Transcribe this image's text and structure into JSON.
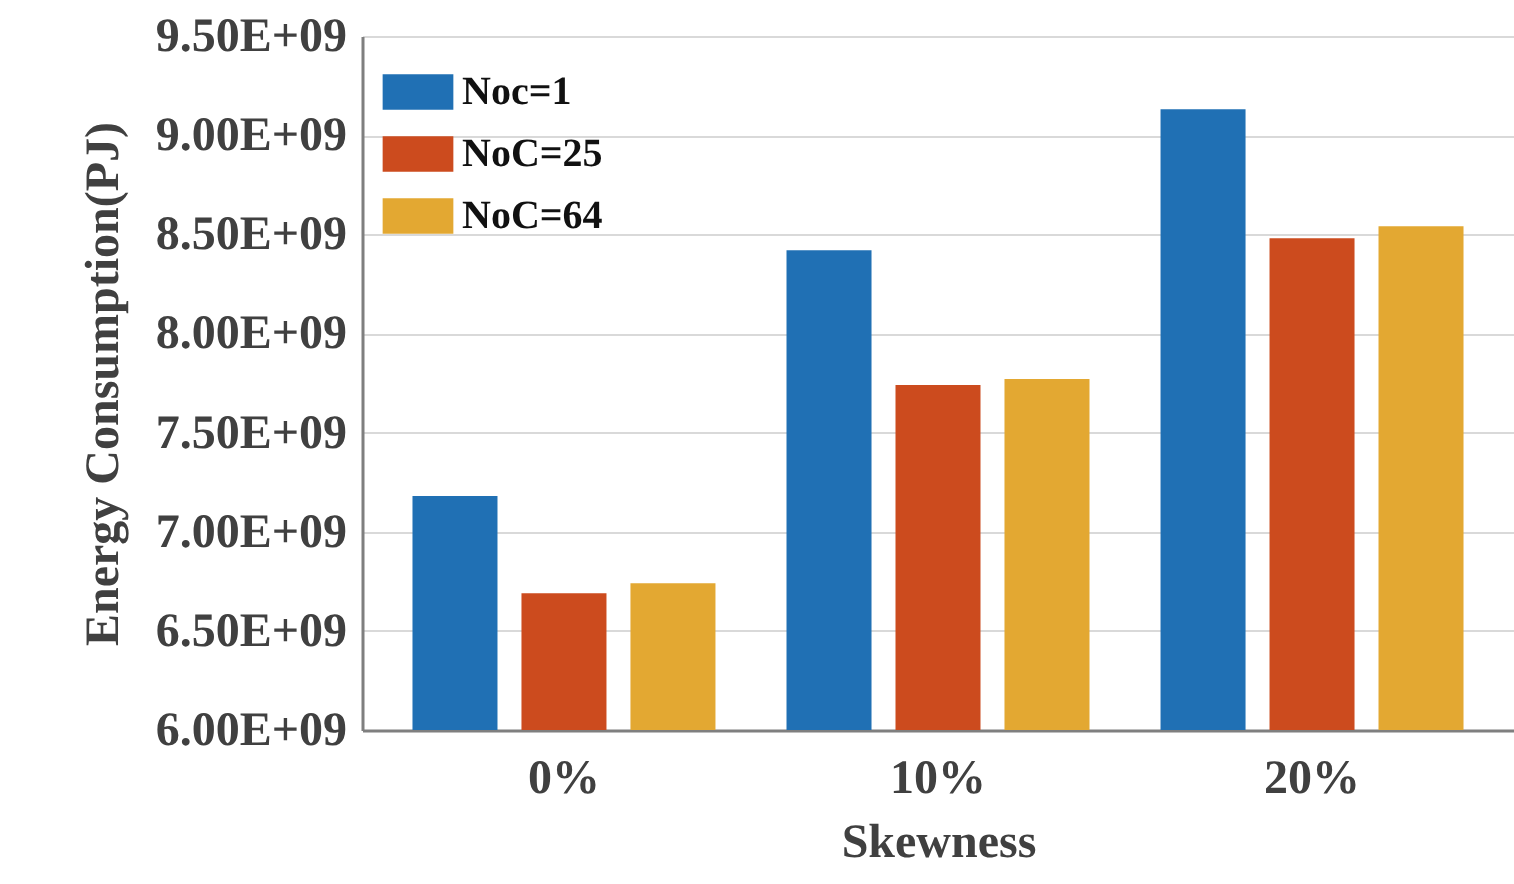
{
  "chart_data": {
    "type": "bar",
    "xlabel": "Skewness",
    "ylabel": "Energy Consumption(PJ)",
    "categories": [
      "0%",
      "10%",
      "20%"
    ],
    "series": [
      {
        "name": "Noc=1",
        "color": "#2070b4",
        "values": [
          7180000000,
          8420000000,
          9130000000
        ]
      },
      {
        "name": "NoC=25",
        "color": "#cc4b1e",
        "values": [
          6690000000,
          7740000000,
          8480000000
        ]
      },
      {
        "name": "NoC=64",
        "color": "#e3a832",
        "values": [
          6740000000,
          7770000000,
          8540000000
        ]
      }
    ],
    "ylim": [
      6000000000,
      9500000000
    ],
    "yticks": [
      {
        "value": 6000000000,
        "label": "6.00E+09"
      },
      {
        "value": 6500000000,
        "label": "6.50E+09"
      },
      {
        "value": 7000000000,
        "label": "7.00E+09"
      },
      {
        "value": 7500000000,
        "label": "7.50E+09"
      },
      {
        "value": 8000000000,
        "label": "8.00E+09"
      },
      {
        "value": 8500000000,
        "label": "8.50E+09"
      },
      {
        "value": 9000000000,
        "label": "9.00E+09"
      },
      {
        "value": 9500000000,
        "label": "9.50E+09"
      }
    ],
    "grid": "y",
    "legend": "top left"
  }
}
